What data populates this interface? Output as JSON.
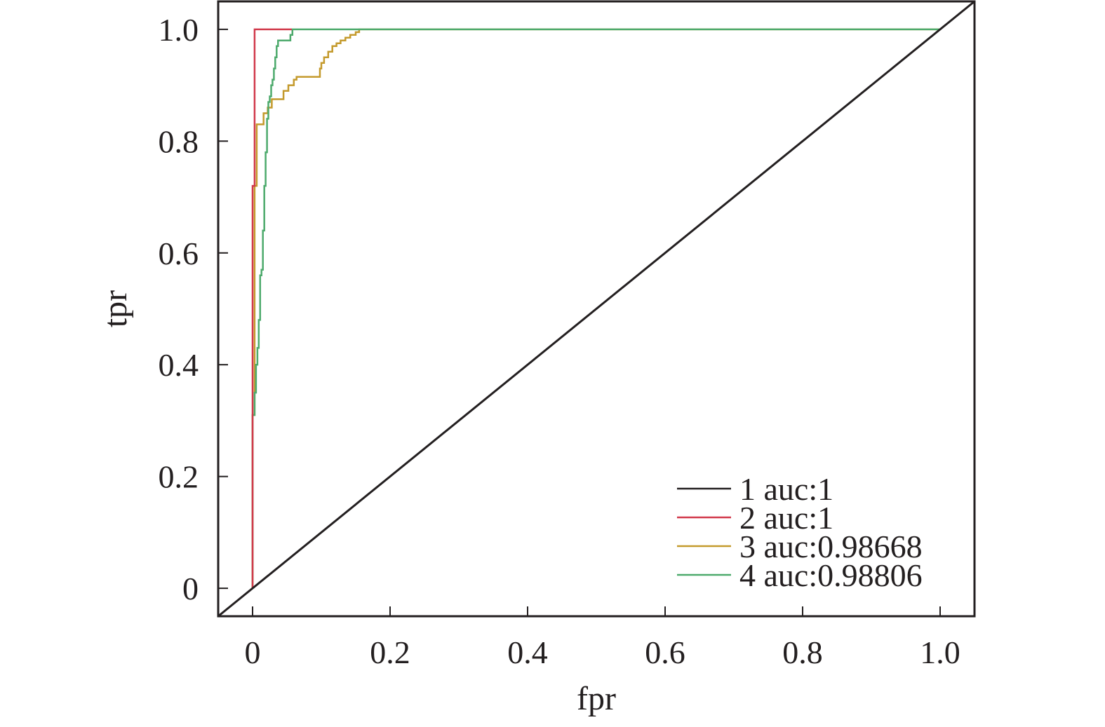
{
  "chart_data": {
    "type": "line",
    "title": "",
    "xlabel": "fpr",
    "ylabel": "tpr",
    "xlim": [
      -0.05,
      1.05
    ],
    "ylim": [
      -0.05,
      1.05
    ],
    "xticks": [
      0,
      0.2,
      0.4,
      0.6,
      0.8,
      1.0
    ],
    "xtick_labels": [
      "0",
      "0.2",
      "0.4",
      "0.6",
      "0.8",
      "1.0"
    ],
    "yticks": [
      0,
      0.2,
      0.4,
      0.6,
      0.8,
      1.0
    ],
    "ytick_labels": [
      "0",
      "0.2",
      "0.4",
      "0.6",
      "0.8",
      "1.0"
    ],
    "grid": false,
    "legend_position": "bottom-right",
    "series": [
      {
        "name": "1 auc:1",
        "color": "#231f20",
        "x": [
          -0.05,
          1.05
        ],
        "y": [
          -0.05,
          1.05
        ]
      },
      {
        "name": "2 auc:1",
        "color": "#d1394b",
        "x": [
          0,
          0,
          0.003,
          0.003,
          0.003,
          0.057
        ],
        "y": [
          0,
          0.72,
          0.72,
          0.74,
          1.0,
          1.0
        ]
      },
      {
        "name": "3 auc:0.98668",
        "color": "#c49a2c",
        "x": [
          0,
          0,
          0.003,
          0.003,
          0.006,
          0.006,
          0.016,
          0.016,
          0.022,
          0.022,
          0.028,
          0.028,
          0.045,
          0.045,
          0.052,
          0.052,
          0.06,
          0.06,
          0.064,
          0.064,
          0.098,
          0.098,
          0.1,
          0.1,
          0.104,
          0.104,
          0.11,
          0.11,
          0.116,
          0.116,
          0.122,
          0.122,
          0.128,
          0.128,
          0.135,
          0.135,
          0.142,
          0.142,
          0.15,
          0.15,
          0.155,
          0.155,
          1.0
        ],
        "y": [
          0,
          0.31,
          0.31,
          0.72,
          0.72,
          0.83,
          0.83,
          0.85,
          0.85,
          0.86,
          0.86,
          0.875,
          0.875,
          0.89,
          0.89,
          0.9,
          0.9,
          0.91,
          0.91,
          0.915,
          0.915,
          0.93,
          0.93,
          0.94,
          0.94,
          0.95,
          0.95,
          0.96,
          0.96,
          0.97,
          0.97,
          0.975,
          0.975,
          0.98,
          0.98,
          0.985,
          0.985,
          0.99,
          0.99,
          0.995,
          0.995,
          1.0,
          1.0
        ]
      },
      {
        "name": "4 auc:0.98806",
        "color": "#4daa6c",
        "x": [
          0,
          0,
          0.003,
          0.003,
          0.005,
          0.005,
          0.007,
          0.007,
          0.009,
          0.009,
          0.011,
          0.011,
          0.013,
          0.013,
          0.015,
          0.015,
          0.017,
          0.017,
          0.019,
          0.019,
          0.021,
          0.021,
          0.023,
          0.023,
          0.025,
          0.025,
          0.027,
          0.027,
          0.029,
          0.029,
          0.031,
          0.031,
          0.033,
          0.033,
          0.035,
          0.035,
          0.037,
          0.037,
          0.055,
          0.055,
          0.058,
          0.058,
          1.0
        ],
        "y": [
          0,
          0.31,
          0.31,
          0.35,
          0.35,
          0.4,
          0.4,
          0.43,
          0.43,
          0.48,
          0.48,
          0.56,
          0.56,
          0.57,
          0.57,
          0.64,
          0.64,
          0.72,
          0.72,
          0.78,
          0.78,
          0.84,
          0.84,
          0.87,
          0.87,
          0.88,
          0.88,
          0.9,
          0.9,
          0.91,
          0.91,
          0.93,
          0.93,
          0.95,
          0.95,
          0.97,
          0.97,
          0.98,
          0.98,
          0.99,
          0.99,
          1.0,
          1.0
        ]
      }
    ]
  }
}
